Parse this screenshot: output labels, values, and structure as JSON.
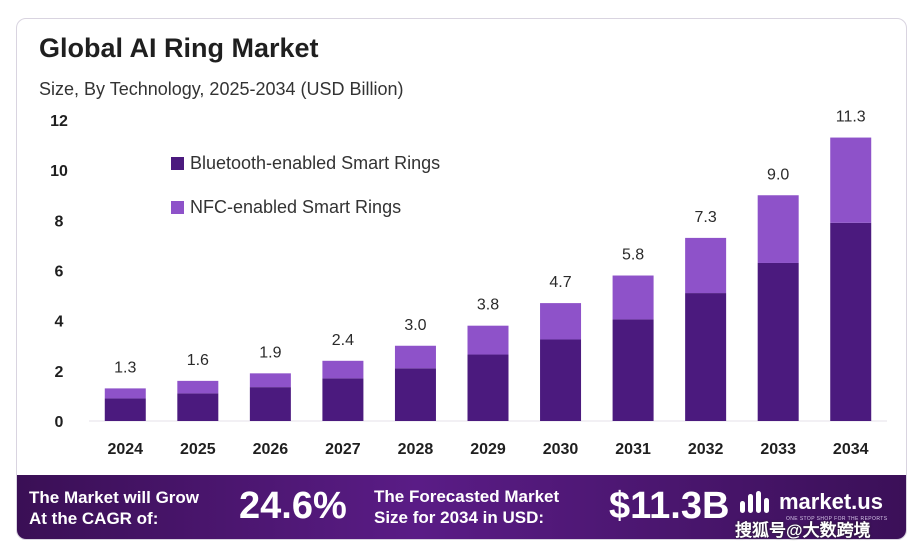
{
  "chart_data": {
    "type": "bar",
    "stacked": true,
    "title": "Global AI Ring Market",
    "subtitle": "Size, By Technology, 2025-2034 (USD Billion)",
    "categories": [
      "2024",
      "2025",
      "2026",
      "2027",
      "2028",
      "2029",
      "2030",
      "2031",
      "2032",
      "2033",
      "2034"
    ],
    "series": [
      {
        "name": "Bluetooth-enabled Smart Rings",
        "color": "#4b1a7e",
        "values": [
          0.9,
          1.1,
          1.35,
          1.7,
          2.1,
          2.65,
          3.25,
          4.05,
          5.1,
          6.3,
          7.9
        ]
      },
      {
        "name": "NFC-enabled Smart Rings",
        "color": "#8e52c9",
        "values": [
          0.4,
          0.5,
          0.55,
          0.7,
          0.9,
          1.15,
          1.45,
          1.75,
          2.2,
          2.7,
          3.4
        ]
      }
    ],
    "totals": [
      "1.3",
      "1.6",
      "1.9",
      "2.4",
      "3.0",
      "3.8",
      "4.7",
      "5.8",
      "7.3",
      "9.0",
      "11.3"
    ],
    "y_ticks": [
      "0",
      "2",
      "4",
      "6",
      "8",
      "10",
      "12"
    ],
    "ylim": [
      0,
      12
    ],
    "legend_position": "top-left",
    "grid": false
  },
  "footer": {
    "cagr_line1": "The Market will Grow",
    "cagr_line2": "At the CAGR of:",
    "cagr_value": "24.6%",
    "forecast_line1": "The Forecasted Market",
    "forecast_line2": "Size for 2034 in USD:",
    "forecast_value": "$11.3B",
    "brand": "market.us",
    "brand_tagline": "ONE STOP SHOP FOR THE REPORTS"
  },
  "watermark": "搜狐号@大数跨境"
}
